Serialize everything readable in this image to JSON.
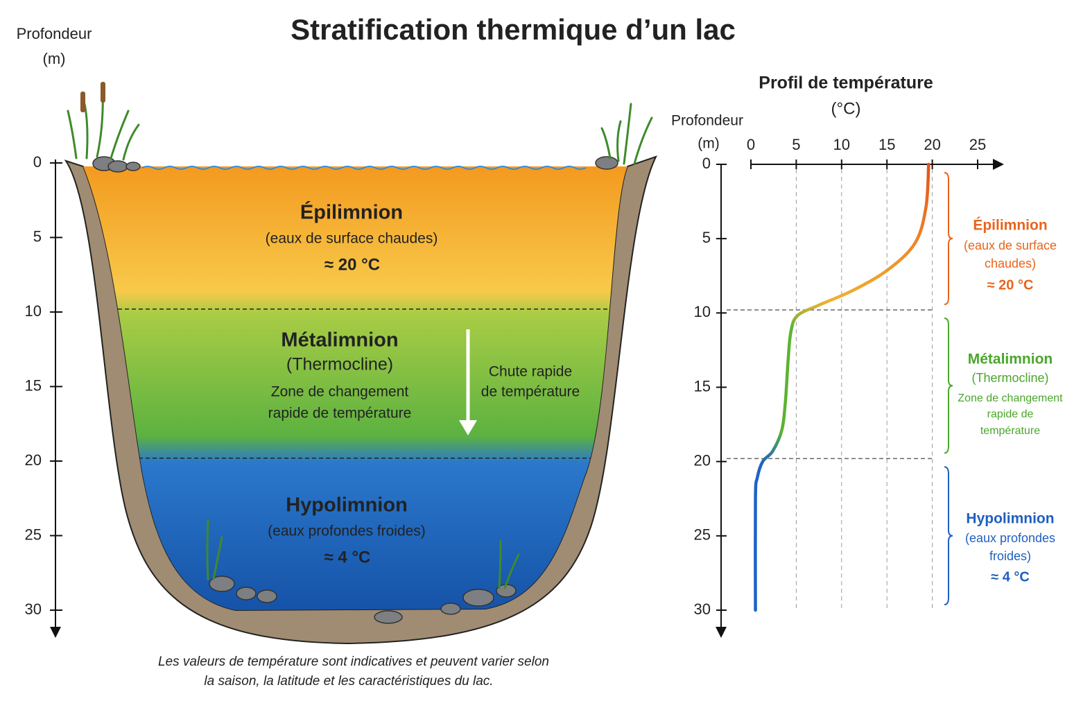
{
  "title": "Stratification thermique d’un lac",
  "lake": {
    "axis_label": [
      "Profondeur",
      "(m)"
    ],
    "ylim": [
      0,
      30
    ],
    "yticks": [
      0,
      5,
      10,
      15,
      20,
      25,
      30
    ],
    "zones": [
      {
        "name": "Épilimnion",
        "lines": [
          "(eaux de surface chaudes)"
        ],
        "temperature": "≈ 20 °C"
      },
      {
        "name": "Métalimnion",
        "lines": [
          "(Thermocline)",
          "Zone de changement",
          "rapide de température"
        ]
      },
      {
        "name": "Hypolimnion",
        "lines": [
          "(eaux profondes froides)"
        ],
        "temperature": "≈ 4 °C"
      }
    ],
    "arrow_label": [
      "Chute rapide",
      "de température"
    ]
  },
  "note": [
    "Les valeurs de température sont indicatives et peuvent varier selon",
    "la saison, la latitude et les caractéristiques du lac."
  ],
  "chart_data": {
    "type": "line",
    "title": [
      "Profil de température",
      "(°C)"
    ],
    "y_label": [
      "Profondeur",
      "(m)"
    ],
    "xlim": [
      0,
      25
    ],
    "xticks": [
      0,
      5,
      10,
      15,
      20,
      25
    ],
    "ylim": [
      0,
      30
    ],
    "yticks": [
      0,
      5,
      10,
      15,
      20,
      25,
      30
    ],
    "x": [
      19.6,
      19.3,
      18.1,
      15.1,
      11.2,
      7.4,
      5.1,
      4.4,
      4.1,
      3.8,
      3.4,
      2.4,
      1.3,
      0.7,
      0.5,
      0.5
    ],
    "y": [
      0,
      2.9,
      5.3,
      7.1,
      8.5,
      9.5,
      10.2,
      11.3,
      13.2,
      16,
      17.9,
      19.3,
      20,
      21.1,
      22.5,
      30
    ],
    "line_colors": [
      "#e4501c",
      "#f2b030",
      "#5cb332",
      "#1e62c6"
    ],
    "zone_boundaries": [
      9.8,
      19.8
    ],
    "zones": [
      {
        "name": "Épilimnion",
        "lines": [
          "(eaux de surface",
          "chaudes)"
        ],
        "temperature": "≈ 20 °C",
        "color": "#e8641c"
      },
      {
        "name": "Métalimnion",
        "lines": [
          "(Thermocline)",
          "Zone de changement",
          "rapide de",
          "température"
        ],
        "color": "#4aa62a"
      },
      {
        "name": "Hypolimnion",
        "lines": [
          "(eaux profondes",
          "froides)"
        ],
        "temperature": "≈ 4 °C",
        "color": "#1f5fc0"
      }
    ]
  }
}
